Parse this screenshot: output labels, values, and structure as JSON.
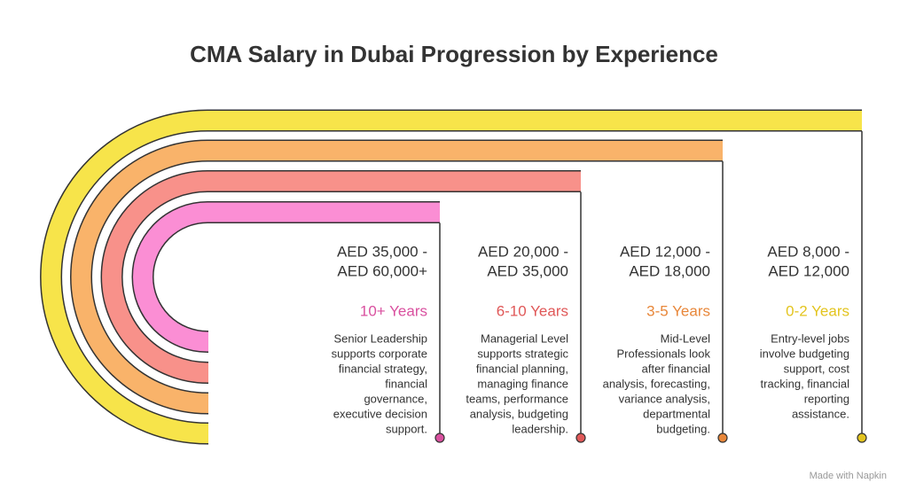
{
  "title": "CMA Salary in Dubai Progression by Experience",
  "stages": [
    {
      "salary": [
        "AED 35,000 -",
        "AED 60,000+"
      ],
      "experience": "10+ Years",
      "color": "#d9509f",
      "band_color": "#fb8ed4",
      "description": [
        "Senior Leadership",
        "supports corporate",
        "financial strategy,",
        "financial",
        "governance,",
        "executive decision",
        "support."
      ]
    },
    {
      "salary": [
        "AED 20,000 -",
        "AED 35,000"
      ],
      "experience": "6-10 Years",
      "color": "#e05858",
      "band_color": "#f8918a",
      "description": [
        "Managerial Level",
        "supports strategic",
        "financial planning,",
        "managing finance",
        "teams, performance",
        "analysis, budgeting",
        "leadership."
      ]
    },
    {
      "salary": [
        "AED 12,000 -",
        "AED 18,000"
      ],
      "experience": "3-5 Years",
      "color": "#e8873a",
      "band_color": "#f9b36a",
      "description": [
        "Mid-Level",
        "Professionals look",
        "after financial",
        "analysis, forecasting,",
        "variance analysis,",
        "departmental",
        "budgeting."
      ]
    },
    {
      "salary": [
        "AED 8,000 -",
        "AED 12,000"
      ],
      "experience": "0-2 Years",
      "color": "#e3c41f",
      "band_color": "#f7e44a",
      "description": [
        "Entry-level jobs",
        "involve budgeting",
        "support, cost",
        "tracking, financial",
        "reporting",
        "assistance."
      ]
    }
  ],
  "footer": "Made with Napkin"
}
